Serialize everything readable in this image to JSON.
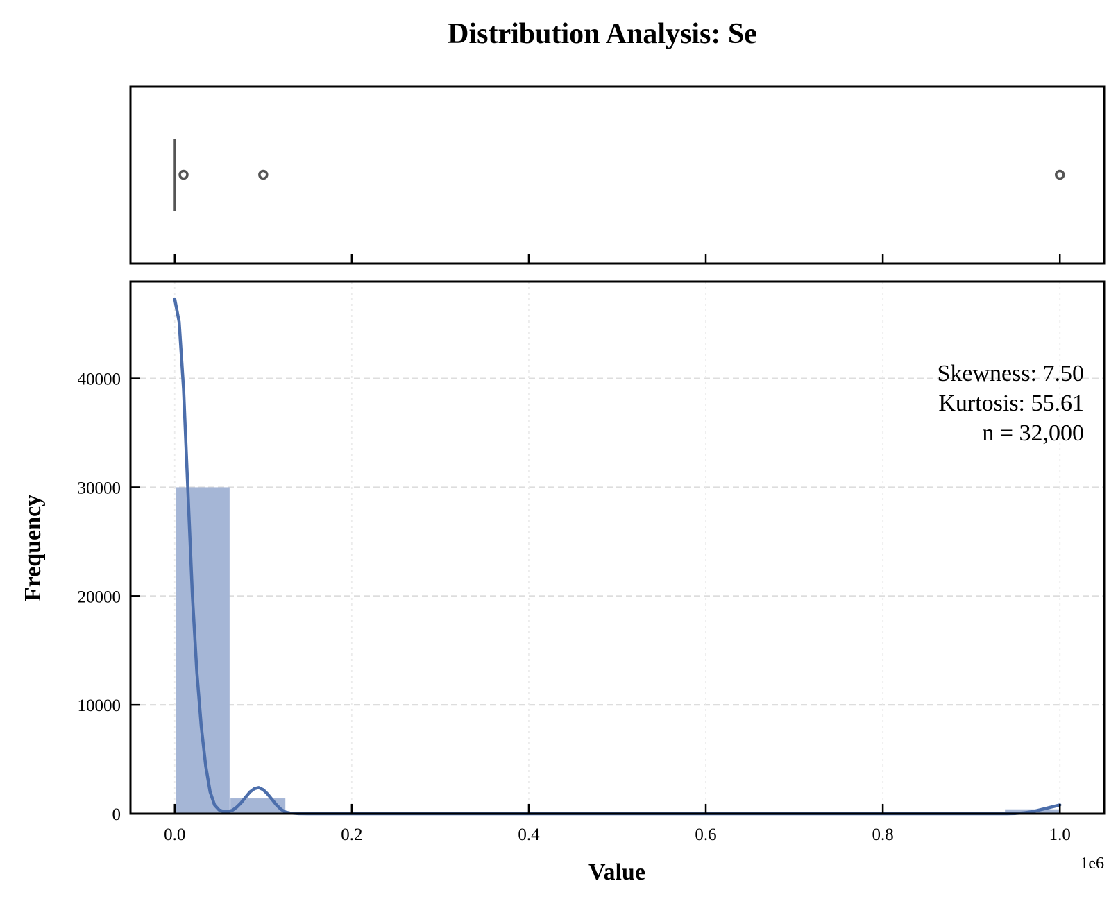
{
  "chart_data": {
    "type": "histogram",
    "title": "Distribution Analysis: Se",
    "xlabel": "Value",
    "ylabel": "Frequency",
    "x_offset_label": "1e6",
    "x_scale_multiplier": 1000000,
    "xlim": [
      -50000,
      1050000
    ],
    "ylim": [
      0,
      48900
    ],
    "x_ticks": [
      0,
      200000,
      400000,
      600000,
      800000,
      1000000
    ],
    "x_tick_labels": [
      "0.0",
      "0.2",
      "0.4",
      "0.6",
      "0.8",
      "1.0"
    ],
    "y_ticks": [
      0,
      10000,
      20000,
      30000,
      40000
    ],
    "y_tick_labels": [
      "0",
      "10000",
      "20000",
      "30000",
      "40000"
    ],
    "grid": true,
    "bars": [
      {
        "x0": 1000,
        "x1": 62000,
        "count": 30000
      },
      {
        "x0": 63000,
        "x1": 125000,
        "count": 1400
      },
      {
        "x0": 938000,
        "x1": 1000000,
        "count": 400
      }
    ],
    "kde": {
      "x": [
        0,
        5000,
        10000,
        15000,
        20000,
        25000,
        30000,
        35000,
        40000,
        45000,
        50000,
        55000,
        60000,
        65000,
        70000,
        75000,
        80000,
        85000,
        90000,
        95000,
        100000,
        105000,
        110000,
        115000,
        120000,
        125000,
        130000,
        140000,
        150000,
        200000,
        400000,
        600000,
        800000,
        940000,
        950000,
        960000,
        970000,
        980000,
        990000,
        1000000
      ],
      "y": [
        47300,
        45200,
        39000,
        29500,
        20000,
        13000,
        8000,
        4400,
        2000,
        800,
        350,
        200,
        200,
        300,
        600,
        1000,
        1500,
        2000,
        2300,
        2400,
        2200,
        1800,
        1300,
        800,
        400,
        150,
        60,
        10,
        0,
        0,
        0,
        0,
        0,
        0,
        20,
        80,
        200,
        400,
        600,
        800
      ]
    },
    "boxplot": {
      "whisker_line": 0,
      "outliers": [
        10000,
        100000,
        1000000
      ]
    },
    "annotation_lines": [
      "Skewness: 7.50",
      "Kurtosis: 55.61",
      "n = 32,000"
    ],
    "colors": {
      "bar_fill": "#a5b6d6",
      "kde_line": "#4c6eab",
      "box_marker": "#555555",
      "grid": "#dddddd"
    }
  }
}
